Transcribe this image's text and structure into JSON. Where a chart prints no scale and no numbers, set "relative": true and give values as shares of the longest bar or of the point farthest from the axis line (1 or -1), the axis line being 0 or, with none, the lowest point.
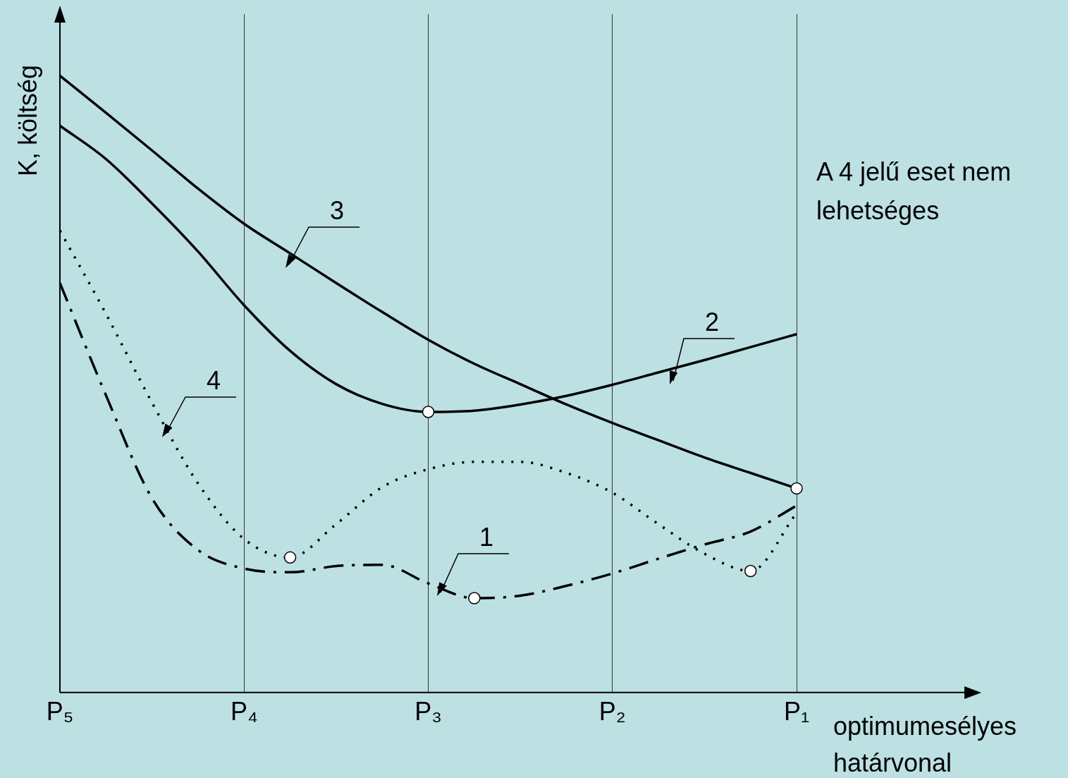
{
  "chart_data": {
    "type": "line",
    "relative": true,
    "xlabel": "optimumesélyes határvonal",
    "ylabel": "K, költség",
    "categories": [
      "P₅",
      null,
      null,
      null,
      "P₄",
      null,
      null,
      null,
      "P₃",
      null,
      null,
      null,
      "P₂",
      null,
      null,
      null,
      "P₁"
    ],
    "grid": "x",
    "legend": false,
    "marker": "none",
    "series": [
      {
        "color": "#000000",
        "line_style": "solid",
        "values": [
          1.0,
          0.94,
          0.879,
          0.817,
          0.76,
          0.712,
          0.664,
          0.617,
          0.572,
          0.533,
          0.5,
          0.467,
          0.437,
          0.409,
          0.381,
          0.356,
          0.331
        ]
      },
      {
        "color": "#000000",
        "line_style": "solid",
        "values": [
          0.919,
          0.865,
          0.793,
          0.715,
          0.628,
          0.554,
          0.5,
          0.468,
          0.455,
          0.457,
          0.467,
          0.481,
          0.499,
          0.519,
          0.539,
          0.56,
          0.581
        ]
      },
      {
        "color": "#000000",
        "line_style": "dotted",
        "values": [
          0.749,
          0.614,
          0.47,
          0.339,
          0.249,
          0.219,
          0.273,
          0.333,
          0.362,
          0.374,
          0.374,
          0.356,
          0.324,
          0.273,
          0.225,
          0.197,
          0.291
        ]
      },
      {
        "color": "#000000",
        "line_style": "dashed",
        "values": [
          0.664,
          0.482,
          0.315,
          0.231,
          0.201,
          0.195,
          0.205,
          0.207,
          0.177,
          0.153,
          0.157,
          0.173,
          0.193,
          0.217,
          0.24,
          0.261,
          0.303
        ]
      },
      {
        "type": "scatter",
        "marker": "circle",
        "color": "#ffffff",
        "values": [
          null,
          null,
          null,
          null,
          null,
          0.219,
          null,
          null,
          0.455,
          0.153,
          null,
          null,
          null,
          null,
          null,
          0.197,
          0.331
        ]
      }
    ],
    "annotations": [
      "3",
      "2",
      "4",
      "1",
      "A 4 jelű eset nem lehetséges"
    ]
  }
}
